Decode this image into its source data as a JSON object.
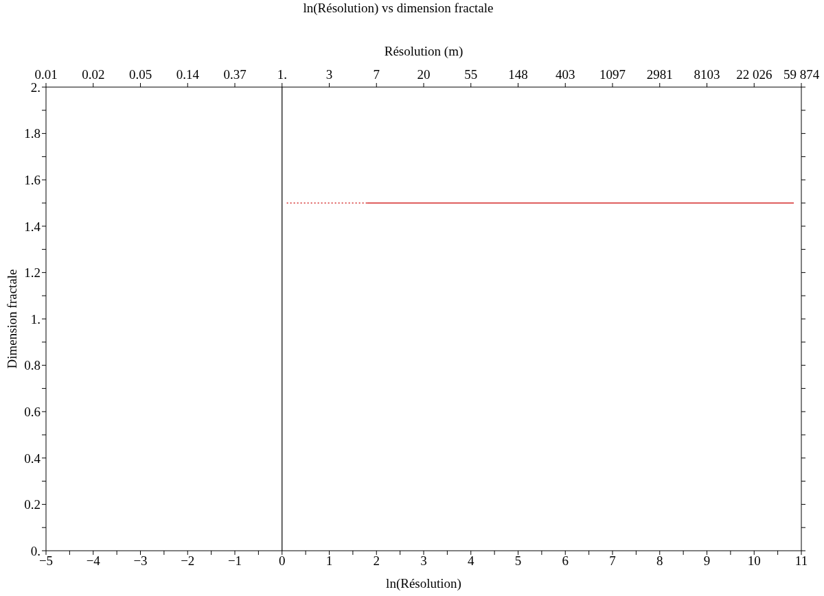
{
  "chart_data": {
    "type": "line",
    "title": "ln(Résolution) vs dimension fractale",
    "xlabel": "ln(Résolution)",
    "ylabel": "Dimension fractale",
    "x2label": "Résolution (m)",
    "series": [
      {
        "color": "#d42a2a",
        "line_style": "dotted",
        "x": [
          0.1,
          1.8
        ],
        "values": [
          1.5,
          1.5
        ]
      },
      {
        "color": "#d42a2a",
        "line_style": "solid",
        "x": [
          1.8,
          10.84
        ],
        "values": [
          1.5,
          1.5
        ]
      }
    ],
    "xlim": [
      -5,
      11
    ],
    "xticks": [
      {
        "value": -5,
        "label": "−5"
      },
      {
        "value": -4.5,
        "label": null
      },
      {
        "value": -4,
        "label": "−4"
      },
      {
        "value": -3.5,
        "label": null
      },
      {
        "value": -3,
        "label": "−3"
      },
      {
        "value": -2.5,
        "label": null
      },
      {
        "value": -2,
        "label": "−2"
      },
      {
        "value": -1.5,
        "label": null
      },
      {
        "value": -1,
        "label": "−1"
      },
      {
        "value": -0.5,
        "label": null
      },
      0,
      {
        "value": 0.5,
        "label": null
      },
      1,
      {
        "value": 1.5,
        "label": null
      },
      2,
      {
        "value": 2.5,
        "label": null
      },
      3,
      {
        "value": 3.5,
        "label": null
      },
      4,
      {
        "value": 4.5,
        "label": null
      },
      5,
      {
        "value": 5.5,
        "label": null
      },
      6,
      {
        "value": 6.5,
        "label": null
      },
      7,
      {
        "value": 7.5,
        "label": null
      },
      8,
      {
        "value": 8.5,
        "label": null
      },
      9,
      {
        "value": 9.5,
        "label": null
      },
      10,
      {
        "value": 10.5,
        "label": null
      },
      11
    ],
    "ylim": [
      0,
      2
    ],
    "yticks": [
      {
        "value": 0,
        "label": "0."
      },
      {
        "value": 0.1,
        "label": null
      },
      0.2,
      {
        "value": 0.3,
        "label": null
      },
      0.4,
      {
        "value": 0.5,
        "label": null
      },
      0.6,
      {
        "value": 0.7,
        "label": null
      },
      0.8,
      {
        "value": 0.9,
        "label": null
      },
      {
        "value": 1,
        "label": "1."
      },
      {
        "value": 1.1,
        "label": null
      },
      1.2,
      {
        "value": 1.3,
        "label": null
      },
      1.4,
      {
        "value": 1.5,
        "label": null
      },
      1.6,
      {
        "value": 1.7,
        "label": null
      },
      1.8,
      {
        "value": 1.9,
        "label": null
      },
      {
        "value": 2,
        "label": "2."
      }
    ],
    "x2lim": [
      0.0067379,
      59874.14
    ],
    "x2ticks": [
      {
        "value": 0.0067379,
        "label": "0.01"
      },
      {
        "value": 0.0183156,
        "label": "0.02"
      },
      {
        "value": 0.0497871,
        "label": "0.05"
      },
      {
        "value": 0.135335,
        "label": "0.14"
      },
      {
        "value": 0.367879,
        "label": "0.37"
      },
      {
        "value": 1,
        "label": "1."
      },
      {
        "value": 2.71828,
        "label": "3"
      },
      {
        "value": 7.38906,
        "label": "7"
      },
      {
        "value": 20.0855,
        "label": "20"
      },
      {
        "value": 54.5982,
        "label": "55"
      },
      {
        "value": 148.413,
        "label": "148"
      },
      {
        "value": 403.429,
        "label": "403"
      },
      {
        "value": 1096.63,
        "label": "1097"
      },
      {
        "value": 2980.96,
        "label": "2981"
      },
      {
        "value": 8103.08,
        "label": "8103"
      },
      {
        "value": 22026.47,
        "label": "22 026"
      },
      {
        "value": 59874.14,
        "label": "59 874"
      }
    ],
    "log": "x2",
    "ref_lines": [
      {
        "axis": "x",
        "value": 0,
        "color": "#000000"
      }
    ]
  }
}
